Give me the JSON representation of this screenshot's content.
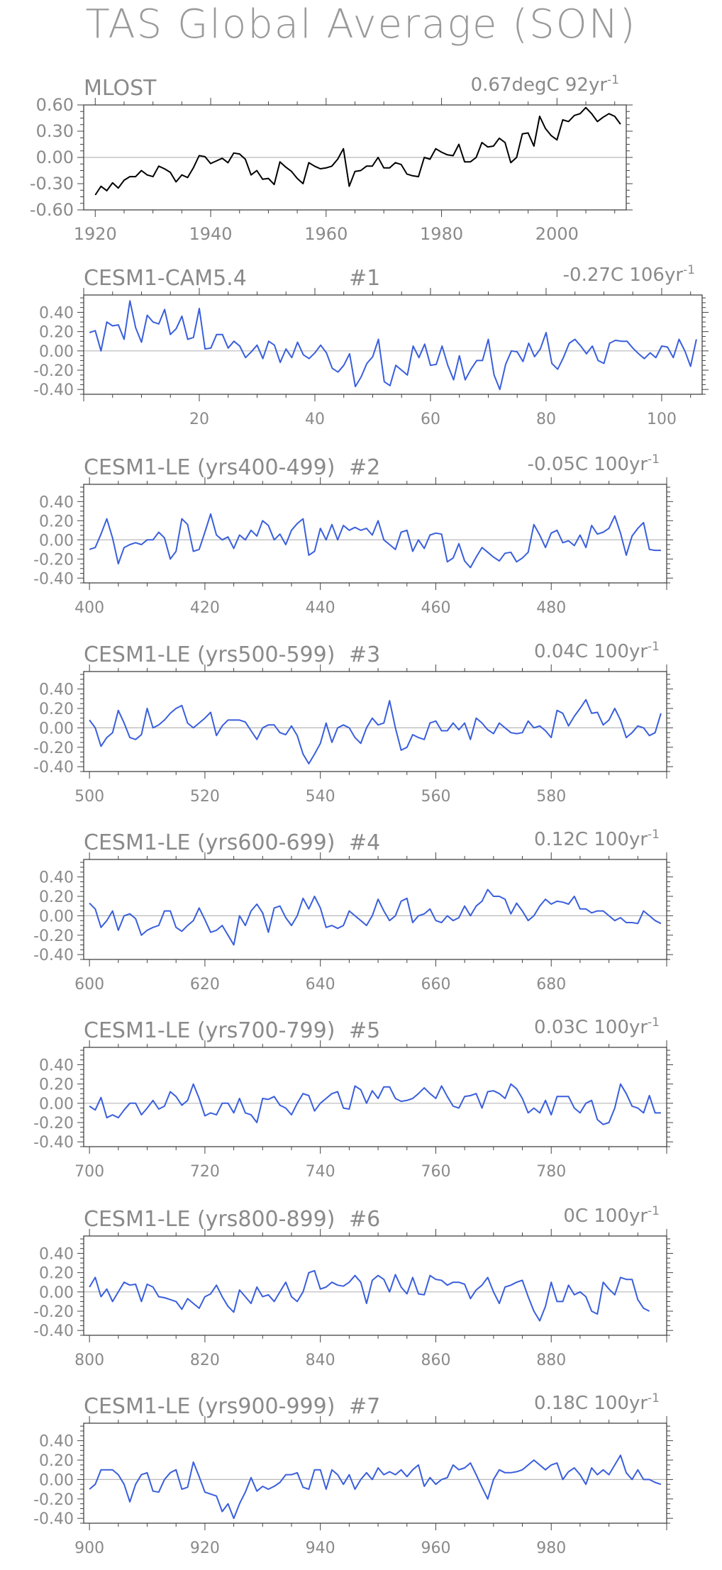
{
  "title": "TAS Global Average (SON)",
  "colors": {
    "obs_line": "#000000",
    "model_line": "#3a5fdc",
    "zero_line": "#b8b8b8",
    "text": "#8a8a8a",
    "frame": "#444444"
  },
  "panels": [
    {
      "name": "MLOST",
      "num": "",
      "trend": "0.67degC",
      "length": "92yr",
      "length_sup": "-1"
    },
    {
      "name": "CESM1-CAM5.4",
      "num": "#1",
      "trend": "-0.27C",
      "length": "106yr",
      "length_sup": "-1"
    },
    {
      "name": "CESM1-LE (yrs400-499)",
      "num": "#2",
      "trend": "-0.05C",
      "length": "100yr",
      "length_sup": "-1"
    },
    {
      "name": "CESM1-LE (yrs500-599)",
      "num": "#3",
      "trend": "0.04C",
      "length": "100yr",
      "length_sup": "-1"
    },
    {
      "name": "CESM1-LE (yrs600-699)",
      "num": "#4",
      "trend": "0.12C",
      "length": "100yr",
      "length_sup": "-1"
    },
    {
      "name": "CESM1-LE (yrs700-799)",
      "num": "#5",
      "trend": "0.03C",
      "length": "100yr",
      "length_sup": "-1"
    },
    {
      "name": "CESM1-LE (yrs800-899)",
      "num": "#6",
      "trend": "0C",
      "length": "100yr",
      "length_sup": "-1"
    },
    {
      "name": "CESM1-LE (yrs900-999)",
      "num": "#7",
      "trend": "0.18C",
      "length": "100yr",
      "length_sup": "-1"
    }
  ],
  "chart_data": [
    {
      "type": "line",
      "title": "MLOST",
      "xlim": [
        1918,
        2012
      ],
      "ylim": [
        -0.6,
        0.6
      ],
      "xticks": [
        1920,
        1940,
        1960,
        1980,
        2000
      ],
      "yticks": [
        "0.60",
        "0.30",
        "0.00",
        "-0.30",
        "-0.60"
      ],
      "x_start": 1920,
      "x_step": 1,
      "values": [
        -0.43,
        -0.33,
        -0.38,
        -0.29,
        -0.35,
        -0.26,
        -0.22,
        -0.22,
        -0.15,
        -0.2,
        -0.22,
        -0.1,
        -0.13,
        -0.17,
        -0.28,
        -0.2,
        -0.23,
        -0.12,
        0.02,
        0.01,
        -0.07,
        -0.04,
        -0.01,
        -0.06,
        0.05,
        0.04,
        -0.02,
        -0.2,
        -0.15,
        -0.25,
        -0.24,
        -0.31,
        -0.05,
        -0.11,
        -0.16,
        -0.24,
        -0.3,
        -0.06,
        -0.1,
        -0.13,
        -0.12,
        -0.1,
        -0.02,
        0.1,
        -0.33,
        -0.16,
        -0.15,
        -0.1,
        -0.1,
        0.0,
        -0.12,
        -0.12,
        -0.06,
        -0.08,
        -0.19,
        -0.21,
        -0.22,
        0.0,
        -0.02,
        0.1,
        0.06,
        0.03,
        0.02,
        0.15,
        -0.05,
        -0.05,
        0.0,
        0.17,
        0.12,
        0.13,
        0.22,
        0.17,
        -0.06,
        0.0,
        0.27,
        0.28,
        0.13,
        0.47,
        0.33,
        0.25,
        0.2,
        0.43,
        0.41,
        0.48,
        0.5,
        0.57,
        0.5,
        0.41,
        0.46,
        0.5,
        0.47,
        0.38
      ]
    },
    {
      "type": "line",
      "title": "CESM1-CAM5.4",
      "xlim": [
        0,
        107
      ],
      "ylim": [
        -0.45,
        0.58
      ],
      "xticks": [
        20,
        40,
        60,
        80,
        100
      ],
      "yticks": [
        "0.40",
        "0.20",
        "0.00",
        "-0.20",
        "-0.40"
      ],
      "x_start": 1,
      "x_step": 1,
      "values": [
        0.19,
        0.21,
        0.0,
        0.3,
        0.26,
        0.27,
        0.12,
        0.52,
        0.24,
        0.09,
        0.37,
        0.3,
        0.28,
        0.43,
        0.17,
        0.23,
        0.36,
        0.12,
        0.14,
        0.44,
        0.02,
        0.03,
        0.17,
        0.17,
        0.03,
        0.1,
        0.05,
        -0.07,
        -0.01,
        0.06,
        -0.08,
        0.1,
        0.06,
        -0.12,
        0.02,
        -0.07,
        0.09,
        -0.04,
        -0.08,
        -0.02,
        0.06,
        -0.02,
        -0.18,
        -0.22,
        -0.15,
        -0.03,
        -0.37,
        -0.27,
        -0.13,
        -0.06,
        0.12,
        -0.32,
        -0.36,
        -0.15,
        -0.2,
        -0.25,
        0.05,
        -0.07,
        0.07,
        -0.15,
        -0.14,
        0.05,
        -0.15,
        -0.3,
        -0.05,
        -0.3,
        -0.19,
        -0.1,
        -0.1,
        0.12,
        -0.25,
        -0.4,
        -0.14,
        0.0,
        -0.01,
        -0.11,
        0.08,
        -0.06,
        0.02,
        0.19,
        -0.13,
        -0.19,
        -0.07,
        0.08,
        0.12,
        0.05,
        -0.03,
        0.05,
        -0.1,
        -0.13,
        0.08,
        0.11,
        0.1,
        0.1,
        0.03,
        -0.03,
        -0.08,
        -0.02,
        -0.07,
        0.05,
        0.04,
        -0.07,
        0.12,
        0.0,
        -0.16,
        0.12
      ]
    },
    {
      "type": "line",
      "title": "CESM1-LE (yrs400-499)",
      "xlim": [
        399,
        500
      ],
      "ylim": [
        -0.45,
        0.58
      ],
      "xticks": [
        400,
        420,
        440,
        460,
        480
      ],
      "yticks": [
        "0.40",
        "0.20",
        "0.00",
        "-0.20",
        "-0.40"
      ],
      "x_start": 400,
      "x_step": 1,
      "values": [
        -0.1,
        -0.08,
        0.06,
        0.22,
        0.02,
        -0.25,
        -0.08,
        -0.05,
        -0.03,
        -0.05,
        0.0,
        0.0,
        0.08,
        0.02,
        -0.2,
        -0.12,
        0.22,
        0.16,
        -0.12,
        -0.1,
        0.08,
        0.27,
        0.05,
        0.0,
        0.03,
        -0.09,
        0.05,
        0.0,
        0.1,
        0.04,
        0.2,
        0.15,
        0.0,
        0.06,
        -0.05,
        0.1,
        0.17,
        0.22,
        -0.16,
        -0.12,
        0.12,
        0.0,
        0.16,
        0.0,
        0.15,
        0.1,
        0.13,
        0.1,
        0.12,
        0.05,
        0.2,
        0.0,
        -0.05,
        -0.1,
        0.08,
        0.1,
        -0.12,
        0.0,
        -0.09,
        0.05,
        0.07,
        0.06,
        -0.23,
        -0.19,
        -0.04,
        -0.22,
        -0.29,
        -0.18,
        -0.08,
        -0.13,
        -0.18,
        -0.22,
        -0.14,
        -0.13,
        -0.23,
        -0.19,
        -0.13,
        0.16,
        0.05,
        -0.08,
        0.07,
        0.1,
        -0.03,
        -0.01,
        -0.06,
        0.05,
        -0.08,
        0.15,
        0.06,
        0.08,
        0.12,
        0.25,
        0.07,
        -0.16,
        0.04,
        0.12,
        0.18,
        -0.1,
        -0.11,
        -0.11
      ]
    },
    {
      "type": "line",
      "title": "CESM1-LE (yrs500-599)",
      "xlim": [
        499,
        600
      ],
      "ylim": [
        -0.45,
        0.58
      ],
      "xticks": [
        500,
        520,
        540,
        560,
        580
      ],
      "yticks": [
        "0.40",
        "0.20",
        "0.00",
        "-0.20",
        "-0.40"
      ],
      "x_start": 500,
      "x_step": 1,
      "values": [
        0.08,
        0.0,
        -0.19,
        -0.1,
        -0.05,
        0.18,
        0.05,
        -0.1,
        -0.12,
        -0.07,
        0.2,
        0.0,
        0.03,
        0.08,
        0.15,
        0.2,
        0.23,
        0.05,
        0.0,
        0.05,
        0.1,
        0.16,
        -0.08,
        0.02,
        0.08,
        0.08,
        0.08,
        0.06,
        -0.03,
        -0.12,
        0.0,
        0.03,
        0.03,
        -0.05,
        -0.07,
        0.02,
        -0.08,
        -0.27,
        -0.37,
        -0.27,
        -0.16,
        0.05,
        -0.15,
        0.0,
        0.03,
        0.0,
        -0.1,
        -0.16,
        0.0,
        0.1,
        0.03,
        0.05,
        0.28,
        0.0,
        -0.23,
        -0.2,
        -0.07,
        -0.1,
        -0.12,
        0.05,
        0.07,
        -0.03,
        -0.03,
        0.05,
        -0.02,
        0.05,
        -0.12,
        0.1,
        0.05,
        -0.02,
        -0.06,
        0.05,
        0.0,
        -0.05,
        -0.06,
        -0.05,
        0.07,
        0.0,
        0.02,
        -0.03,
        -0.1,
        0.18,
        0.15,
        0.02,
        0.12,
        0.2,
        0.29,
        0.15,
        0.16,
        0.03,
        0.08,
        0.2,
        0.08,
        -0.1,
        -0.05,
        0.02,
        0.0,
        -0.08,
        -0.05,
        0.15
      ]
    },
    {
      "type": "line",
      "title": "CESM1-LE (yrs600-699)",
      "xlim": [
        599,
        700
      ],
      "ylim": [
        -0.45,
        0.58
      ],
      "xticks": [
        600,
        620,
        640,
        660,
        680
      ],
      "yticks": [
        "0.40",
        "0.20",
        "0.00",
        "-0.20",
        "-0.40"
      ],
      "x_start": 600,
      "x_step": 1,
      "values": [
        0.13,
        0.07,
        -0.12,
        -0.05,
        0.05,
        -0.15,
        0.0,
        0.02,
        -0.03,
        -0.2,
        -0.15,
        -0.12,
        -0.1,
        0.05,
        0.05,
        -0.12,
        -0.16,
        -0.1,
        -0.05,
        0.08,
        -0.04,
        -0.17,
        -0.15,
        -0.1,
        -0.2,
        -0.3,
        0.0,
        -0.1,
        0.05,
        0.12,
        0.03,
        -0.17,
        0.08,
        0.1,
        -0.02,
        -0.1,
        0.0,
        0.18,
        0.07,
        0.2,
        0.08,
        -0.12,
        -0.1,
        -0.13,
        -0.1,
        0.05,
        0.0,
        -0.05,
        -0.1,
        0.0,
        0.17,
        0.05,
        -0.05,
        0.0,
        0.15,
        0.18,
        -0.07,
        0.0,
        0.02,
        0.07,
        -0.05,
        -0.07,
        0.0,
        -0.05,
        -0.02,
        0.1,
        0.0,
        0.1,
        0.15,
        0.27,
        0.2,
        0.2,
        0.17,
        0.02,
        0.13,
        0.05,
        -0.05,
        0.0,
        0.1,
        0.17,
        0.12,
        0.15,
        0.14,
        0.12,
        0.2,
        0.07,
        0.07,
        0.03,
        0.05,
        0.05,
        0.0,
        -0.05,
        -0.02,
        -0.07,
        -0.07,
        -0.08,
        0.05,
        0.0,
        -0.05,
        -0.08
      ]
    },
    {
      "type": "line",
      "title": "CESM1-LE (yrs700-799)",
      "xlim": [
        699,
        800
      ],
      "ylim": [
        -0.45,
        0.58
      ],
      "xticks": [
        700,
        720,
        740,
        760,
        780
      ],
      "yticks": [
        "0.40",
        "0.20",
        "0.00",
        "-0.20",
        "-0.40"
      ],
      "x_start": 700,
      "x_step": 1,
      "values": [
        -0.03,
        -0.07,
        0.06,
        -0.15,
        -0.12,
        -0.15,
        -0.07,
        0.0,
        0.0,
        -0.12,
        -0.05,
        0.03,
        -0.06,
        -0.03,
        0.12,
        0.07,
        -0.02,
        0.03,
        0.2,
        0.05,
        -0.13,
        -0.1,
        -0.12,
        0.0,
        0.0,
        -0.1,
        0.05,
        -0.1,
        -0.12,
        -0.2,
        0.05,
        0.04,
        0.07,
        -0.02,
        -0.05,
        -0.12,
        0.0,
        0.1,
        0.08,
        -0.08,
        0.0,
        0.05,
        0.1,
        0.12,
        -0.05,
        -0.06,
        0.18,
        0.14,
        0.0,
        0.13,
        0.05,
        0.17,
        0.17,
        0.05,
        0.02,
        0.03,
        0.05,
        0.1,
        0.16,
        0.1,
        0.05,
        0.18,
        0.07,
        -0.03,
        -0.05,
        0.07,
        0.08,
        0.1,
        -0.05,
        0.12,
        0.13,
        0.1,
        0.05,
        0.2,
        0.15,
        0.05,
        -0.1,
        -0.05,
        -0.1,
        0.03,
        -0.12,
        0.07,
        0.07,
        0.07,
        -0.05,
        -0.1,
        0.0,
        0.03,
        -0.17,
        -0.22,
        -0.2,
        -0.05,
        0.2,
        0.1,
        -0.03,
        -0.05,
        -0.1,
        0.08,
        -0.1,
        -0.1
      ]
    },
    {
      "type": "line",
      "title": "CESM1-LE (yrs800-899)",
      "xlim": [
        799,
        900
      ],
      "ylim": [
        -0.45,
        0.58
      ],
      "xticks": [
        800,
        820,
        840,
        860,
        880
      ],
      "yticks": [
        "0.40",
        "0.20",
        "0.00",
        "-0.20",
        "-0.40"
      ],
      "x_start": 800,
      "x_step": 1,
      "values": [
        0.05,
        0.15,
        -0.05,
        0.03,
        -0.1,
        0.0,
        0.1,
        0.07,
        0.08,
        -0.1,
        0.08,
        0.05,
        -0.05,
        -0.06,
        -0.08,
        -0.1,
        -0.18,
        -0.07,
        -0.12,
        -0.17,
        -0.05,
        -0.02,
        0.07,
        -0.05,
        -0.15,
        -0.21,
        0.02,
        -0.05,
        -0.12,
        0.05,
        -0.05,
        -0.03,
        -0.1,
        0.0,
        0.1,
        -0.05,
        -0.1,
        0.0,
        0.2,
        0.22,
        0.03,
        0.05,
        0.1,
        0.07,
        0.06,
        0.1,
        0.17,
        0.1,
        -0.12,
        0.12,
        0.17,
        0.13,
        0.0,
        0.18,
        0.05,
        -0.02,
        0.15,
        -0.02,
        -0.03,
        0.17,
        0.13,
        0.12,
        0.07,
        0.1,
        0.1,
        0.08,
        -0.07,
        0.02,
        0.07,
        0.15,
        0.0,
        -0.12,
        0.05,
        0.07,
        0.1,
        0.12,
        -0.05,
        -0.2,
        -0.3,
        -0.15,
        0.1,
        -0.1,
        -0.1,
        0.07,
        -0.03,
        0.0,
        -0.05,
        -0.2,
        -0.23,
        0.1,
        0.03,
        -0.03,
        0.15,
        0.13,
        0.13,
        -0.08,
        -0.17,
        -0.2
      ]
    },
    {
      "type": "line",
      "title": "CESM1-LE (yrs900-999)",
      "xlim": [
        899,
        1000
      ],
      "ylim": [
        -0.45,
        0.58
      ],
      "xticks": [
        900,
        920,
        940,
        960,
        980
      ],
      "yticks": [
        "0.40",
        "0.20",
        "0.00",
        "-0.20",
        "-0.40"
      ],
      "x_start": 900,
      "x_step": 1,
      "values": [
        -0.1,
        -0.05,
        0.1,
        0.1,
        0.1,
        0.05,
        -0.05,
        -0.23,
        -0.05,
        0.05,
        0.07,
        -0.12,
        -0.13,
        0.0,
        0.07,
        0.1,
        -0.1,
        -0.08,
        0.18,
        0.03,
        -0.13,
        -0.15,
        -0.17,
        -0.33,
        -0.25,
        -0.4,
        -0.25,
        -0.13,
        0.02,
        -0.12,
        -0.07,
        -0.1,
        -0.07,
        -0.03,
        0.05,
        0.05,
        0.07,
        -0.08,
        -0.1,
        0.1,
        0.1,
        -0.1,
        0.1,
        0.05,
        -0.05,
        0.05,
        -0.1,
        0.0,
        0.07,
        0.0,
        0.12,
        0.05,
        0.08,
        0.05,
        0.1,
        0.03,
        0.1,
        0.15,
        -0.07,
        0.02,
        -0.05,
        0.0,
        0.02,
        0.15,
        0.1,
        0.12,
        0.17,
        0.05,
        -0.08,
        -0.2,
        0.0,
        0.1,
        0.07,
        0.07,
        0.08,
        0.1,
        0.15,
        0.2,
        0.15,
        0.1,
        0.15,
        0.17,
        0.0,
        0.08,
        0.12,
        0.05,
        -0.05,
        0.12,
        0.05,
        0.1,
        0.05,
        0.15,
        0.25,
        0.07,
        0.0,
        0.1,
        0.0,
        0.0,
        -0.03,
        -0.05
      ]
    }
  ]
}
